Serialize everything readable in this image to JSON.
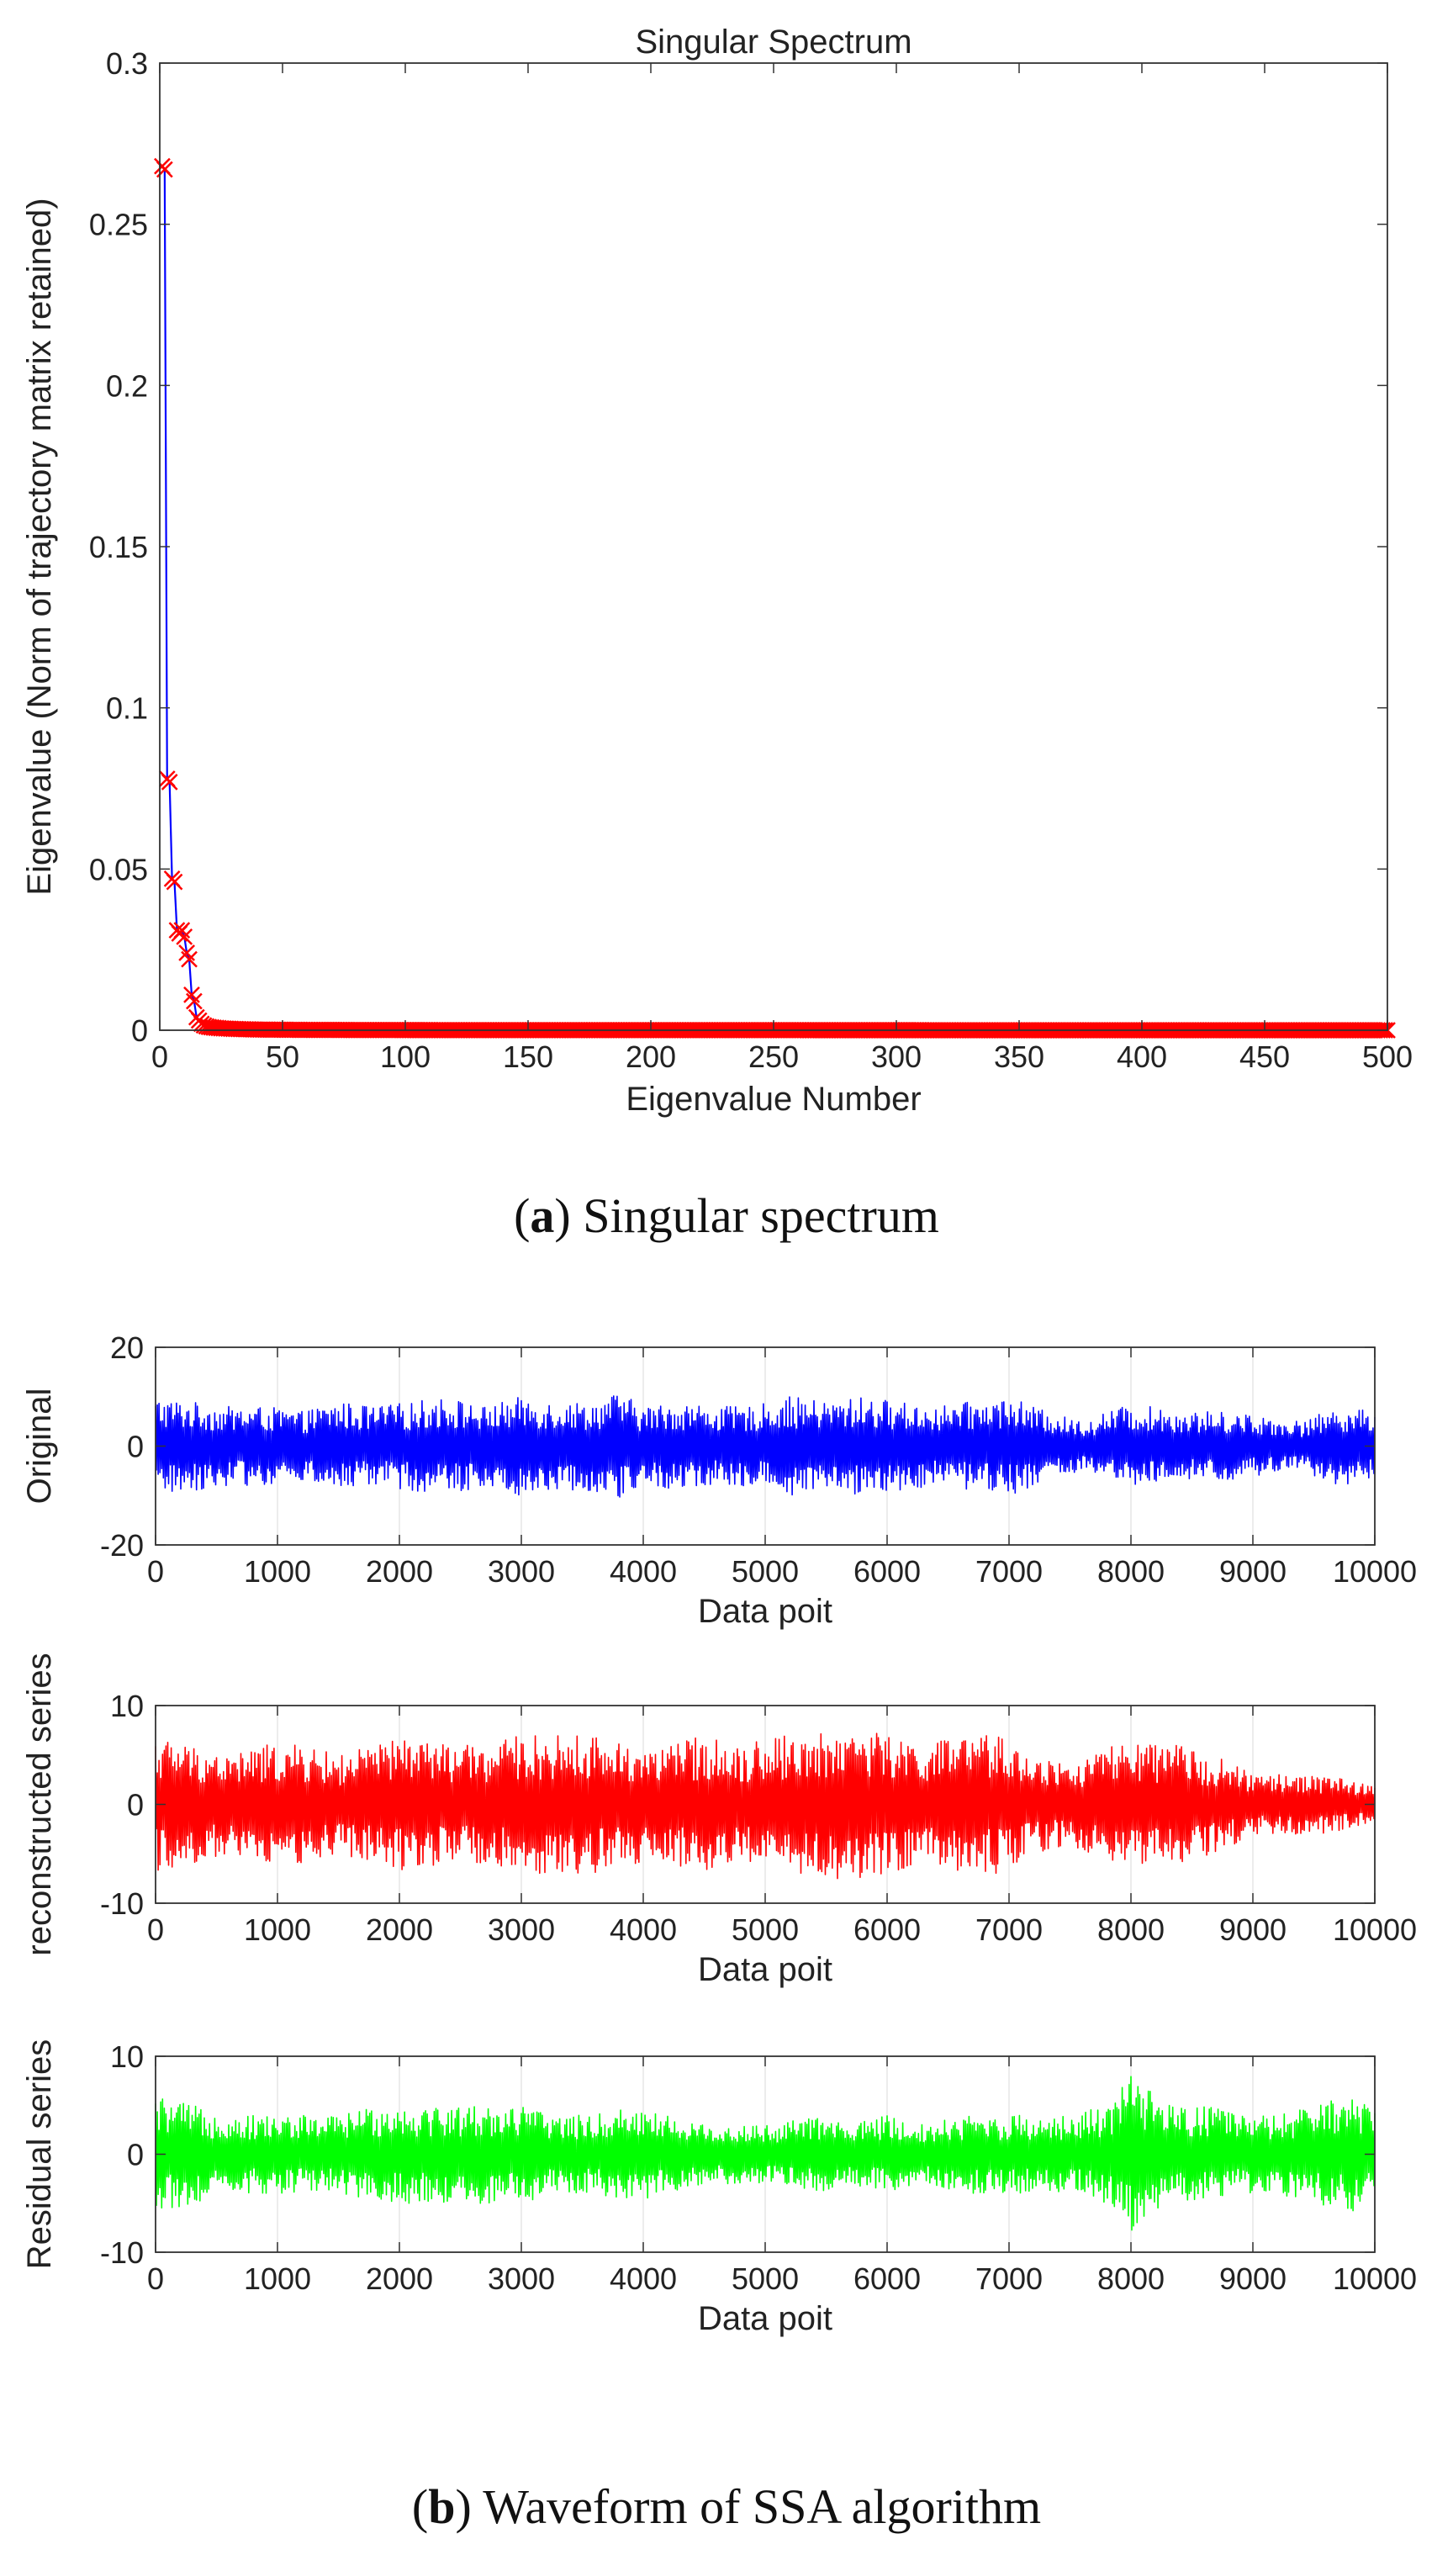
{
  "captions": {
    "a_letter": "a",
    "a_text": "Singular spectrum",
    "b_letter": "b",
    "b_text": "Waveform of SSA algorithm"
  },
  "chart_data": [
    {
      "type": "line",
      "title": "Singular Spectrum",
      "xlabel": "Eigenvalue Number",
      "ylabel": "Eigenvalue (Norm of trajectory matrix retained)",
      "xlim": [
        0,
        500
      ],
      "ylim": [
        0,
        0.3
      ],
      "xticks": [
        0,
        50,
        100,
        150,
        200,
        250,
        300,
        350,
        400,
        450,
        500
      ],
      "yticks": [
        0,
        0.05,
        0.1,
        0.15,
        0.2,
        0.25,
        0.3
      ],
      "xtick_labels": [
        "0",
        "50",
        "100",
        "150",
        "200",
        "250",
        "300",
        "350",
        "400",
        "450",
        "500"
      ],
      "ytick_labels": [
        "0",
        "0.05",
        "0.1",
        "0.15",
        "0.2",
        "0.25",
        "0.3"
      ],
      "grid": false,
      "line_color": "#0000ff",
      "marker": "x",
      "marker_color": "#ff0000",
      "series": [
        {
          "x": [
            1,
            2,
            3,
            4,
            5,
            6,
            7,
            8,
            9,
            10,
            11,
            12,
            13,
            14,
            15,
            16,
            17,
            18,
            19,
            20,
            22,
            25,
            30,
            40,
            60,
            100,
            160,
            250,
            350,
            450,
            500
          ],
          "values": [
            0.268,
            0.267,
            0.078,
            0.077,
            0.047,
            0.046,
            0.031,
            0.03,
            0.031,
            0.029,
            0.024,
            0.022,
            0.011,
            0.009,
            0.004,
            0.003,
            0.002,
            0.0015,
            0.0012,
            0.001,
            0.0008,
            0.0006,
            0.0004,
            0.0002,
            0.0001,
            5e-05,
            3e-05,
            2e-05,
            1e-05,
            1e-05,
            0.0
          ]
        }
      ]
    },
    {
      "type": "line",
      "ylabel": "Original",
      "xlabel": "Data poit",
      "xlim": [
        0,
        10000
      ],
      "ylim": [
        -20,
        20
      ],
      "xticks": [
        0,
        1000,
        2000,
        3000,
        4000,
        5000,
        6000,
        7000,
        8000,
        9000,
        10000
      ],
      "yticks": [
        -20,
        0,
        20
      ],
      "xtick_labels": [
        "0",
        "1000",
        "2000",
        "3000",
        "4000",
        "5000",
        "6000",
        "7000",
        "8000",
        "9000",
        "10000"
      ],
      "ytick_labels": [
        "-20",
        "0",
        "20"
      ],
      "grid": true,
      "color": "#0000ff",
      "envelope": {
        "x": [
          0,
          300,
          600,
          900,
          1200,
          1500,
          1800,
          2100,
          2400,
          2700,
          3000,
          3300,
          3600,
          3800,
          4000,
          4300,
          4600,
          4900,
          5200,
          5500,
          5800,
          6100,
          6400,
          6700,
          7000,
          7300,
          7600,
          7900,
          8200,
          8500,
          8800,
          9100,
          9400,
          9700,
          10000
        ],
        "values": [
          10,
          9,
          8,
          8,
          7,
          9,
          8,
          9,
          10,
          8,
          10,
          9,
          9,
          11,
          8,
          9,
          8,
          8,
          10,
          9,
          10,
          9,
          8,
          9,
          10,
          7,
          5,
          8,
          8,
          7,
          7,
          6,
          5,
          8,
          7
        ]
      }
    },
    {
      "type": "line",
      "ylabel": "reconstructed series",
      "xlabel": "Data poit",
      "xlim": [
        0,
        10000
      ],
      "ylim": [
        -10,
        10
      ],
      "xticks": [
        0,
        1000,
        2000,
        3000,
        4000,
        5000,
        6000,
        7000,
        8000,
        9000,
        10000
      ],
      "yticks": [
        -10,
        0,
        10
      ],
      "xtick_labels": [
        "0",
        "1000",
        "2000",
        "3000",
        "4000",
        "5000",
        "6000",
        "7000",
        "8000",
        "9000",
        "10000"
      ],
      "ytick_labels": [
        "-10",
        "0",
        "10"
      ],
      "grid": true,
      "color": "#ff0000",
      "envelope": {
        "x": [
          0,
          300,
          600,
          900,
          1200,
          1500,
          1800,
          2100,
          2400,
          2700,
          3000,
          3300,
          3600,
          3900,
          4200,
          4500,
          4800,
          5100,
          5400,
          5700,
          6000,
          6300,
          6600,
          6900,
          7200,
          7500,
          7800,
          8100,
          8400,
          8700,
          9000,
          9300,
          9600,
          10000
        ],
        "values": [
          7,
          6,
          5,
          6,
          6,
          5,
          6,
          7,
          6,
          6,
          7,
          7,
          7,
          6,
          6,
          7,
          6,
          7,
          7,
          8,
          7,
          6,
          7,
          7,
          5,
          4,
          6,
          6,
          6,
          5,
          3,
          3,
          3,
          2
        ]
      }
    },
    {
      "type": "line",
      "ylabel": "Residual series",
      "xlabel": "Data poit",
      "xlim": [
        0,
        10000
      ],
      "ylim": [
        -10,
        10
      ],
      "xticks": [
        0,
        1000,
        2000,
        3000,
        4000,
        5000,
        6000,
        7000,
        8000,
        9000,
        10000
      ],
      "yticks": [
        -10,
        0,
        10
      ],
      "xtick_labels": [
        "0",
        "1000",
        "2000",
        "3000",
        "4000",
        "5000",
        "6000",
        "7000",
        "8000",
        "9000",
        "10000"
      ],
      "ytick_labels": [
        "-10",
        "0",
        "10"
      ],
      "grid": true,
      "color": "#00ff00",
      "envelope": {
        "x": [
          0,
          300,
          600,
          900,
          1200,
          1500,
          1800,
          2100,
          2400,
          2700,
          3000,
          3300,
          3600,
          3900,
          4200,
          4500,
          4800,
          5100,
          5400,
          5700,
          6000,
          6300,
          6600,
          6900,
          7200,
          7500,
          7800,
          8000,
          8300,
          8600,
          8900,
          9200,
          9500,
          9800,
          10000
        ],
        "values": [
          6,
          5,
          4,
          4,
          4,
          4,
          5,
          5,
          5,
          5,
          5,
          4,
          4,
          5,
          4,
          3,
          3,
          3,
          4,
          3,
          4,
          3,
          4,
          4,
          4,
          4,
          5,
          8,
          5,
          5,
          4,
          4,
          5,
          6,
          5
        ]
      }
    }
  ]
}
